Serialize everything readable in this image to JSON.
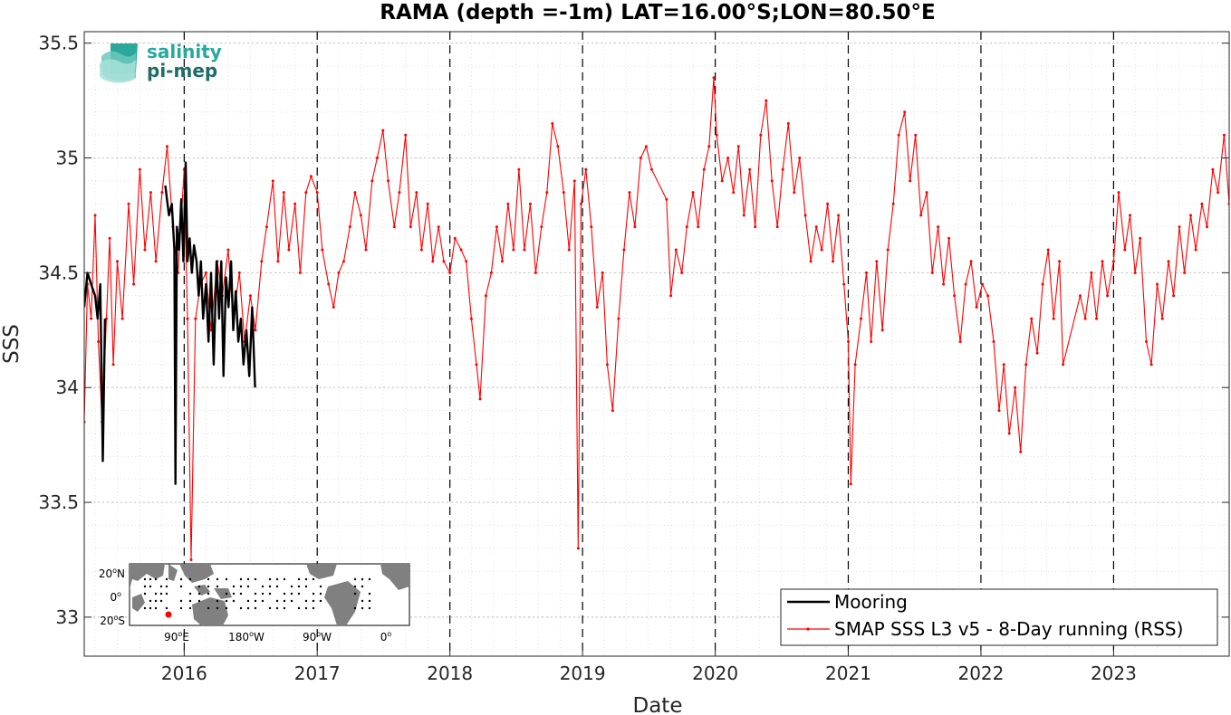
{
  "chart_data": {
    "type": "line",
    "title": "RAMA (depth =-1m) LAT=16.00°S;LON=80.50°E",
    "xlabel": "Date",
    "ylabel": "SSS",
    "xlim": [
      "2015-04-01",
      "2023-11-15"
    ],
    "ylim": [
      32.83,
      35.55
    ],
    "x_ticks": [
      "2016",
      "2017",
      "2018",
      "2019",
      "2020",
      "2021",
      "2022",
      "2023"
    ],
    "y_ticks": [
      33,
      33.5,
      34,
      34.5,
      35,
      35.5
    ],
    "y_tick_labels": [
      "33",
      "33.5",
      "34",
      "34.5",
      "35",
      "35.5"
    ],
    "grid": true,
    "year_lines": "dashed",
    "legend_position": "bottom-right",
    "series": [
      {
        "name": "Mooring",
        "color": "#000000",
        "points": [
          [
            "2015-04-01",
            34.35
          ],
          [
            "2015-04-10",
            34.5
          ],
          [
            "2015-04-20",
            34.45
          ],
          [
            "2015-05-01",
            34.4
          ],
          [
            "2015-05-08",
            34.3
          ],
          [
            "2015-05-15",
            34.45
          ],
          [
            "2015-05-22",
            33.68
          ],
          [
            "2015-05-28",
            34.3
          ],
          [
            "2015-11-10",
            34.88
          ],
          [
            "2015-11-20",
            34.75
          ],
          [
            "2015-11-28",
            34.8
          ],
          [
            "2015-12-05",
            34.6
          ],
          [
            "2015-12-08",
            33.58
          ],
          [
            "2015-12-12",
            34.7
          ],
          [
            "2015-12-18",
            34.6
          ],
          [
            "2015-12-24",
            34.82
          ],
          [
            "2015-12-30",
            34.55
          ],
          [
            "2016-01-05",
            34.98
          ],
          [
            "2016-01-10",
            34.55
          ],
          [
            "2016-01-16",
            34.65
          ],
          [
            "2016-01-22",
            34.5
          ],
          [
            "2016-01-28",
            34.62
          ],
          [
            "2016-02-04",
            34.55
          ],
          [
            "2016-02-10",
            34.4
          ],
          [
            "2016-02-16",
            34.55
          ],
          [
            "2016-02-22",
            34.3
          ],
          [
            "2016-03-01",
            34.45
          ],
          [
            "2016-03-08",
            34.2
          ],
          [
            "2016-03-15",
            34.5
          ],
          [
            "2016-03-22",
            34.1
          ],
          [
            "2016-03-30",
            34.55
          ],
          [
            "2016-04-06",
            34.3
          ],
          [
            "2016-04-12",
            34.55
          ],
          [
            "2016-04-18",
            34.05
          ],
          [
            "2016-04-25",
            34.48
          ],
          [
            "2016-05-02",
            34.35
          ],
          [
            "2016-05-09",
            34.55
          ],
          [
            "2016-05-15",
            34.25
          ],
          [
            "2016-05-22",
            34.42
          ],
          [
            "2016-05-29",
            34.2
          ],
          [
            "2016-06-05",
            34.3
          ],
          [
            "2016-06-12",
            34.1
          ],
          [
            "2016-06-20",
            34.25
          ],
          [
            "2016-06-28",
            34.05
          ],
          [
            "2016-07-06",
            34.35
          ],
          [
            "2016-07-14",
            34.0
          ]
        ]
      },
      {
        "name": "SMAP SSS L3 v5 - 8-Day running (RSS)",
        "color": "#ff0000",
        "points": [
          [
            "2015-04-01",
            33.85
          ],
          [
            "2015-04-10",
            34.45
          ],
          [
            "2015-04-20",
            34.3
          ],
          [
            "2015-05-01",
            34.75
          ],
          [
            "2015-05-10",
            34.2
          ],
          [
            "2015-05-20",
            33.85
          ],
          [
            "2015-06-01",
            34.3
          ],
          [
            "2015-06-10",
            34.65
          ],
          [
            "2015-06-20",
            34.1
          ],
          [
            "2015-07-01",
            34.55
          ],
          [
            "2015-07-15",
            34.3
          ],
          [
            "2015-08-01",
            34.8
          ],
          [
            "2015-08-15",
            34.45
          ],
          [
            "2015-09-01",
            34.95
          ],
          [
            "2015-09-15",
            34.6
          ],
          [
            "2015-10-01",
            34.85
          ],
          [
            "2015-10-15",
            34.55
          ],
          [
            "2015-11-01",
            34.85
          ],
          [
            "2015-11-15",
            35.05
          ],
          [
            "2015-12-01",
            34.7
          ],
          [
            "2015-12-15",
            34.5
          ],
          [
            "2016-01-01",
            34.95
          ],
          [
            "2016-01-10",
            34.3
          ],
          [
            "2016-01-20",
            33.25
          ],
          [
            "2016-02-01",
            34.3
          ],
          [
            "2016-02-15",
            34.45
          ],
          [
            "2016-03-01",
            34.5
          ],
          [
            "2016-03-15",
            34.25
          ],
          [
            "2016-04-01",
            34.55
          ],
          [
            "2016-04-15",
            34.4
          ],
          [
            "2016-05-01",
            34.6
          ],
          [
            "2016-05-15",
            34.3
          ],
          [
            "2016-06-01",
            34.5
          ],
          [
            "2016-06-15",
            34.2
          ],
          [
            "2016-07-01",
            34.4
          ],
          [
            "2016-07-15",
            34.25
          ],
          [
            "2016-08-01",
            34.55
          ],
          [
            "2016-08-15",
            34.7
          ],
          [
            "2016-09-01",
            34.9
          ],
          [
            "2016-09-15",
            34.55
          ],
          [
            "2016-10-01",
            34.85
          ],
          [
            "2016-10-15",
            34.6
          ],
          [
            "2016-11-01",
            34.8
          ],
          [
            "2016-11-15",
            34.5
          ],
          [
            "2016-12-01",
            34.85
          ],
          [
            "2016-12-15",
            34.92
          ],
          [
            "2017-01-01",
            34.85
          ],
          [
            "2017-01-15",
            34.6
          ],
          [
            "2017-02-01",
            34.45
          ],
          [
            "2017-02-15",
            34.35
          ],
          [
            "2017-03-01",
            34.5
          ],
          [
            "2017-03-15",
            34.55
          ],
          [
            "2017-04-01",
            34.7
          ],
          [
            "2017-04-15",
            34.85
          ],
          [
            "2017-05-01",
            34.75
          ],
          [
            "2017-05-15",
            34.6
          ],
          [
            "2017-06-01",
            34.9
          ],
          [
            "2017-06-15",
            35.0
          ],
          [
            "2017-07-01",
            35.12
          ],
          [
            "2017-07-15",
            34.9
          ],
          [
            "2017-08-01",
            34.7
          ],
          [
            "2017-08-15",
            34.85
          ],
          [
            "2017-09-01",
            35.1
          ],
          [
            "2017-09-15",
            34.7
          ],
          [
            "2017-10-01",
            34.85
          ],
          [
            "2017-10-15",
            34.6
          ],
          [
            "2017-11-01",
            34.8
          ],
          [
            "2017-11-15",
            34.55
          ],
          [
            "2017-12-01",
            34.7
          ],
          [
            "2017-12-15",
            34.55
          ],
          [
            "2018-01-01",
            34.5
          ],
          [
            "2018-01-15",
            34.65
          ],
          [
            "2018-02-01",
            34.6
          ],
          [
            "2018-02-15",
            34.55
          ],
          [
            "2018-03-01",
            34.3
          ],
          [
            "2018-03-15",
            34.1
          ],
          [
            "2018-03-25",
            33.95
          ],
          [
            "2018-04-10",
            34.4
          ],
          [
            "2018-04-25",
            34.5
          ],
          [
            "2018-05-10",
            34.7
          ],
          [
            "2018-05-25",
            34.55
          ],
          [
            "2018-06-10",
            34.8
          ],
          [
            "2018-06-25",
            34.6
          ],
          [
            "2018-07-10",
            34.95
          ],
          [
            "2018-07-25",
            34.6
          ],
          [
            "2018-08-10",
            34.8
          ],
          [
            "2018-08-25",
            34.5
          ],
          [
            "2018-09-10",
            34.7
          ],
          [
            "2018-09-25",
            34.85
          ],
          [
            "2018-10-10",
            35.15
          ],
          [
            "2018-10-25",
            35.05
          ],
          [
            "2018-11-10",
            34.85
          ],
          [
            "2018-11-25",
            34.6
          ],
          [
            "2018-12-10",
            34.9
          ],
          [
            "2018-12-20",
            33.3
          ],
          [
            "2018-12-28",
            34.8
          ],
          [
            "2019-01-10",
            34.95
          ],
          [
            "2019-01-25",
            34.7
          ],
          [
            "2019-02-10",
            34.35
          ],
          [
            "2019-02-25",
            34.5
          ],
          [
            "2019-03-10",
            34.1
          ],
          [
            "2019-03-25",
            33.9
          ],
          [
            "2019-04-10",
            34.3
          ],
          [
            "2019-04-25",
            34.6
          ],
          [
            "2019-05-10",
            34.85
          ],
          [
            "2019-05-25",
            34.7
          ],
          [
            "2019-06-10",
            35.0
          ],
          [
            "2019-06-25",
            35.05
          ],
          [
            "2019-07-10",
            34.95
          ],
          [
            "2019-08-20",
            34.82
          ],
          [
            "2019-09-01",
            34.4
          ],
          [
            "2019-09-15",
            34.6
          ],
          [
            "2019-10-01",
            34.5
          ],
          [
            "2019-10-15",
            34.7
          ],
          [
            "2019-11-01",
            34.85
          ],
          [
            "2019-11-15",
            34.7
          ],
          [
            "2019-12-01",
            34.95
          ],
          [
            "2019-12-15",
            35.05
          ],
          [
            "2019-12-28",
            35.35
          ],
          [
            "2020-01-05",
            35.1
          ],
          [
            "2020-01-20",
            34.9
          ],
          [
            "2020-02-05",
            35.0
          ],
          [
            "2020-02-20",
            34.85
          ],
          [
            "2020-03-05",
            35.05
          ],
          [
            "2020-03-20",
            34.75
          ],
          [
            "2020-04-05",
            34.95
          ],
          [
            "2020-04-20",
            34.7
          ],
          [
            "2020-05-05",
            35.1
          ],
          [
            "2020-05-20",
            35.25
          ],
          [
            "2020-06-05",
            34.9
          ],
          [
            "2020-06-20",
            34.7
          ],
          [
            "2020-07-05",
            34.95
          ],
          [
            "2020-07-20",
            35.15
          ],
          [
            "2020-08-05",
            34.85
          ],
          [
            "2020-08-20",
            35.0
          ],
          [
            "2020-09-05",
            34.75
          ],
          [
            "2020-09-20",
            34.55
          ],
          [
            "2020-10-05",
            34.7
          ],
          [
            "2020-10-20",
            34.6
          ],
          [
            "2020-11-05",
            34.8
          ],
          [
            "2020-11-20",
            34.55
          ],
          [
            "2020-12-05",
            34.75
          ],
          [
            "2020-12-20",
            34.45
          ],
          [
            "2021-01-01",
            34.2
          ],
          [
            "2021-01-08",
            33.58
          ],
          [
            "2021-01-20",
            34.1
          ],
          [
            "2021-02-05",
            34.3
          ],
          [
            "2021-02-20",
            34.5
          ],
          [
            "2021-03-05",
            34.2
          ],
          [
            "2021-03-20",
            34.55
          ],
          [
            "2021-04-05",
            34.25
          ],
          [
            "2021-04-20",
            34.6
          ],
          [
            "2021-05-05",
            34.8
          ],
          [
            "2021-05-20",
            35.1
          ],
          [
            "2021-06-05",
            35.2
          ],
          [
            "2021-06-20",
            34.9
          ],
          [
            "2021-07-05",
            35.1
          ],
          [
            "2021-07-20",
            34.75
          ],
          [
            "2021-08-05",
            34.85
          ],
          [
            "2021-08-20",
            34.5
          ],
          [
            "2021-09-05",
            34.7
          ],
          [
            "2021-09-20",
            34.45
          ],
          [
            "2021-10-05",
            34.65
          ],
          [
            "2021-10-20",
            34.4
          ],
          [
            "2021-11-05",
            34.2
          ],
          [
            "2021-11-20",
            34.45
          ],
          [
            "2021-12-05",
            34.55
          ],
          [
            "2021-12-20",
            34.35
          ],
          [
            "2022-01-05",
            34.45
          ],
          [
            "2022-01-20",
            34.4
          ],
          [
            "2022-02-05",
            34.2
          ],
          [
            "2022-02-20",
            33.9
          ],
          [
            "2022-03-05",
            34.1
          ],
          [
            "2022-03-20",
            33.8
          ],
          [
            "2022-04-05",
            34.0
          ],
          [
            "2022-04-20",
            33.72
          ],
          [
            "2022-05-05",
            34.1
          ],
          [
            "2022-05-20",
            34.3
          ],
          [
            "2022-06-05",
            34.15
          ],
          [
            "2022-06-20",
            34.45
          ],
          [
            "2022-07-05",
            34.6
          ],
          [
            "2022-07-20",
            34.3
          ],
          [
            "2022-08-05",
            34.55
          ],
          [
            "2022-08-15",
            34.1
          ],
          [
            "2022-10-01",
            34.4
          ],
          [
            "2022-10-15",
            34.3
          ],
          [
            "2022-11-01",
            34.5
          ],
          [
            "2022-11-15",
            34.3
          ],
          [
            "2022-12-01",
            34.55
          ],
          [
            "2022-12-15",
            34.4
          ],
          [
            "2023-01-01",
            34.55
          ],
          [
            "2023-01-15",
            34.85
          ],
          [
            "2023-02-01",
            34.6
          ],
          [
            "2023-02-15",
            34.75
          ],
          [
            "2023-03-01",
            34.5
          ],
          [
            "2023-03-15",
            34.65
          ],
          [
            "2023-04-01",
            34.2
          ],
          [
            "2023-04-15",
            34.1
          ],
          [
            "2023-05-01",
            34.45
          ],
          [
            "2023-05-15",
            34.3
          ],
          [
            "2023-06-01",
            34.55
          ],
          [
            "2023-06-15",
            34.4
          ],
          [
            "2023-07-01",
            34.7
          ],
          [
            "2023-07-15",
            34.5
          ],
          [
            "2023-08-01",
            34.75
          ],
          [
            "2023-08-15",
            34.6
          ],
          [
            "2023-09-01",
            34.8
          ],
          [
            "2023-09-15",
            34.7
          ],
          [
            "2023-10-01",
            34.95
          ],
          [
            "2023-10-15",
            34.85
          ],
          [
            "2023-11-01",
            35.1
          ],
          [
            "2023-11-15",
            34.8
          ]
        ]
      }
    ]
  },
  "logo": {
    "line1": "salinity",
    "line2": "pi-mep"
  },
  "inset_map": {
    "lat_ticks": [
      {
        "deg": "20",
        "hem": "N"
      },
      {
        "deg": "0",
        "hem": ""
      },
      {
        "deg": "20",
        "hem": "S"
      }
    ],
    "lon_ticks": [
      {
        "deg": "90",
        "hem": "E"
      },
      {
        "deg": "180",
        "hem": "W"
      },
      {
        "deg": "90",
        "hem": "W"
      },
      {
        "deg": "0",
        "hem": ""
      }
    ],
    "land_color": "#808080",
    "station_color": "#ff0000"
  }
}
